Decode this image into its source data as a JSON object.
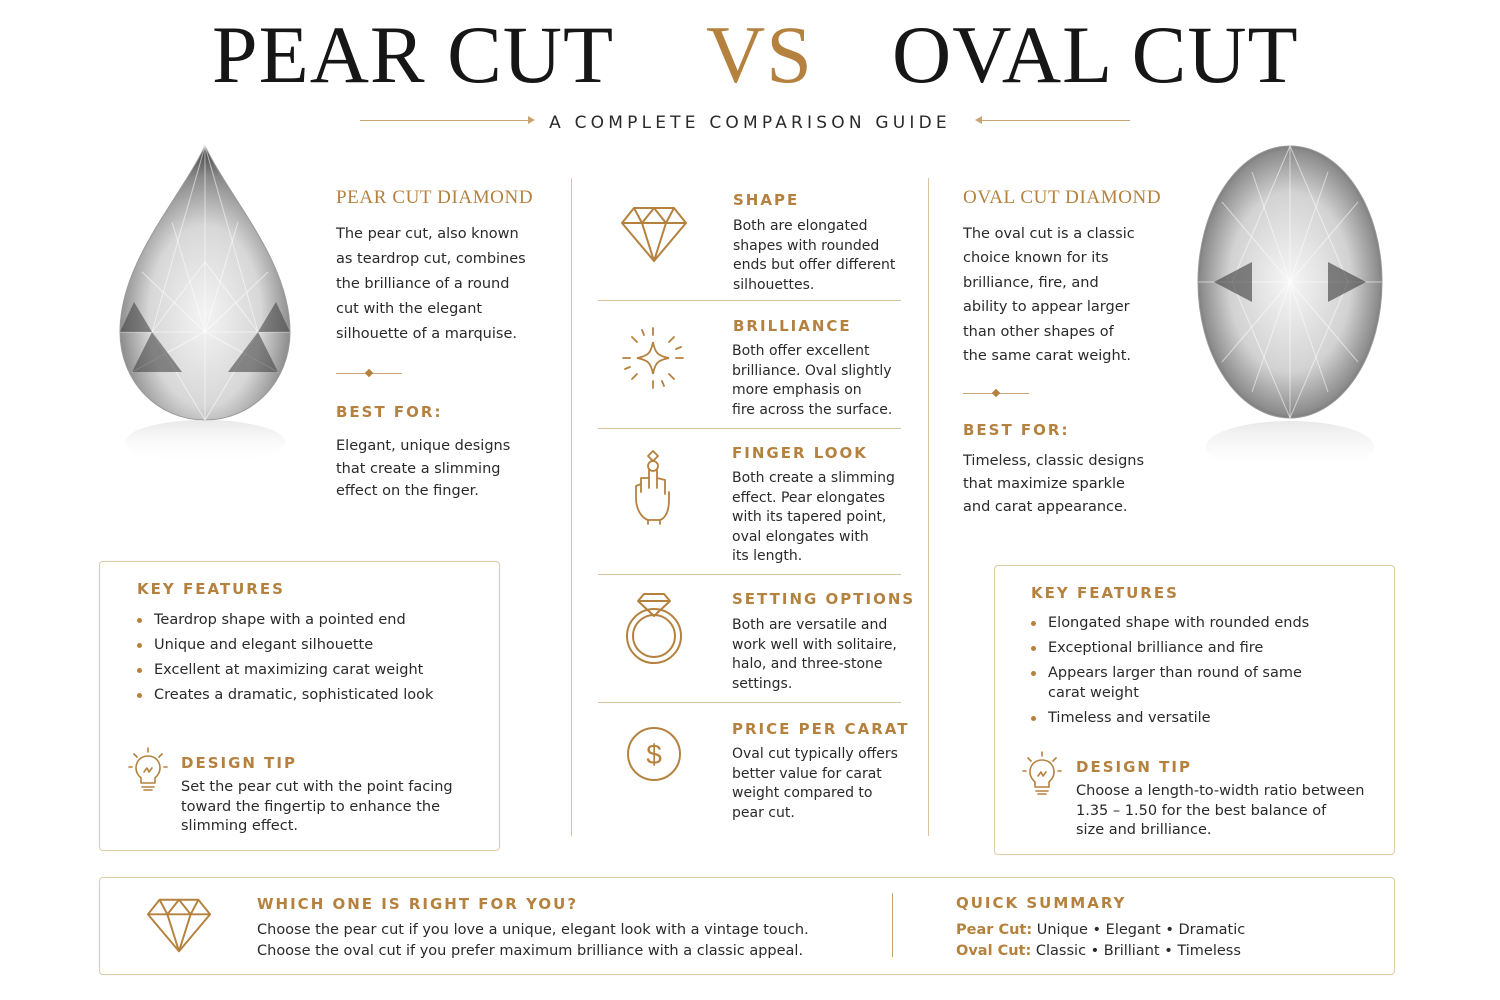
{
  "header": {
    "left_title": "PEAR CUT",
    "vs": "VS",
    "right_title": "OVAL CUT",
    "subtitle": "A COMPLETE COMPARISON GUIDE"
  },
  "pear": {
    "heading": "PEAR CUT DIAMOND",
    "description_lines": [
      "The pear cut, also known",
      "as teardrop cut, combines",
      "the brilliance of a round",
      "cut with the elegant",
      "silhouette of a marquise."
    ],
    "best_for_label": "BEST FOR:",
    "best_for_lines": [
      "Elegant, unique designs",
      "that create a slimming",
      "effect on the finger."
    ],
    "features_label": "KEY FEATURES",
    "features": [
      "Teardrop shape with a pointed end",
      "Unique and elegant silhouette",
      "Excellent at maximizing carat weight",
      "Creates a dramatic, sophisticated look"
    ],
    "tip_label": "DESIGN TIP",
    "tip_lines": [
      "Set the pear cut with the point facing",
      "toward the fingertip to enhance the",
      "slimming effect."
    ]
  },
  "oval": {
    "heading": "OVAL CUT DIAMOND",
    "description_lines": [
      "The oval cut is a classic",
      "choice known for its",
      "brilliance, fire, and",
      "ability to appear larger",
      "than other shapes of",
      "the same carat weight."
    ],
    "best_for_label": "BEST FOR:",
    "best_for_lines": [
      "Timeless, classic designs",
      "that maximize sparkle",
      "and carat appearance."
    ],
    "features_label": "KEY FEATURES",
    "features": [
      "Elongated shape with rounded ends",
      "Exceptional brilliance and fire",
      "Appears larger than round of same carat weight",
      "Timeless and versatile"
    ],
    "tip_label": "DESIGN TIP",
    "tip_lines": [
      "Choose a length-to-width ratio between",
      "1.35 – 1.50 for the best balance of",
      "size and brilliance."
    ]
  },
  "comparison": [
    {
      "title": "SHAPE",
      "icon": "diamond-icon",
      "lines": [
        "Both are elongated",
        "shapes with rounded",
        "ends but offer different",
        "silhouettes."
      ]
    },
    {
      "title": "BRILLIANCE",
      "icon": "sparkle-icon",
      "lines": [
        "Both offer excellent",
        "brilliance. Oval slightly",
        "more emphasis on",
        "fire across the surface."
      ]
    },
    {
      "title": "FINGER LOOK",
      "icon": "hand-icon",
      "lines": [
        "Both create a slimming",
        "effect. Pear elongates",
        "with its tapered point,",
        "oval elongates with",
        "its length."
      ]
    },
    {
      "title": "SETTING OPTIONS",
      "icon": "ring-icon",
      "lines": [
        "Both are versatile and",
        "work well with solitaire,",
        "halo, and three-stone",
        "settings."
      ]
    },
    {
      "title": "PRICE PER CARAT",
      "icon": "dollar-icon",
      "lines": [
        "Oval cut typically offers",
        "better value for carat",
        "weight compared to",
        "pear cut."
      ]
    }
  ],
  "bottom": {
    "question": "WHICH ONE IS RIGHT FOR YOU?",
    "lines": [
      "Choose the pear cut if you love a unique, elegant look with a vintage touch.",
      "Choose the oval cut if you prefer maximum brilliance with a classic appeal."
    ],
    "summary_label": "QUICK SUMMARY",
    "pear_key": "Pear Cut:",
    "pear_value": "Unique • Elegant • Dramatic",
    "oval_key": "Oval Cut:",
    "oval_value": "Classic • Brilliant • Timeless"
  },
  "colors": {
    "accent": "#b5813e",
    "text": "#2a2a2a",
    "border": "#e0c9a6"
  }
}
